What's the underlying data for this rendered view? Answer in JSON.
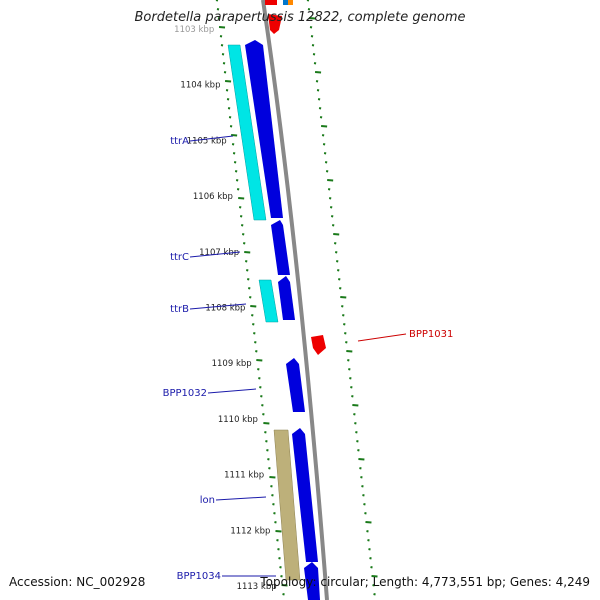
{
  "title": "Bordetella parapertussis 12822, complete genome",
  "accession_text": "Accession: NC_002928",
  "summary_text": "Topology: circular; Length: 4,773,551 bp; Genes: 4,249",
  "position_labels": [
    "1103 kbp",
    "1104 kbp",
    "1105 kbp",
    "1106 kbp",
    "1107 kbp",
    "1108 kbp",
    "1109 kbp",
    "1110 kbp",
    "1111 kbp",
    "1112 kbp",
    "1113 kbp"
  ],
  "gene_labels_left": [
    "ttrA",
    "ttrC",
    "ttrB",
    "BPP1032",
    "lon",
    "BPP1034"
  ],
  "gene_labels_right": [
    "BPP1031"
  ],
  "colors": {
    "forward_gene": "#0000dd",
    "reverse_gene": "#ee0000",
    "cyan_feature": "#00e5e5",
    "khaki_feature": "#bdb07a",
    "backbone": "#888888",
    "tick": "#1a7a1a",
    "label_left": "#1a1aaa",
    "label_right": "#cc0000"
  }
}
